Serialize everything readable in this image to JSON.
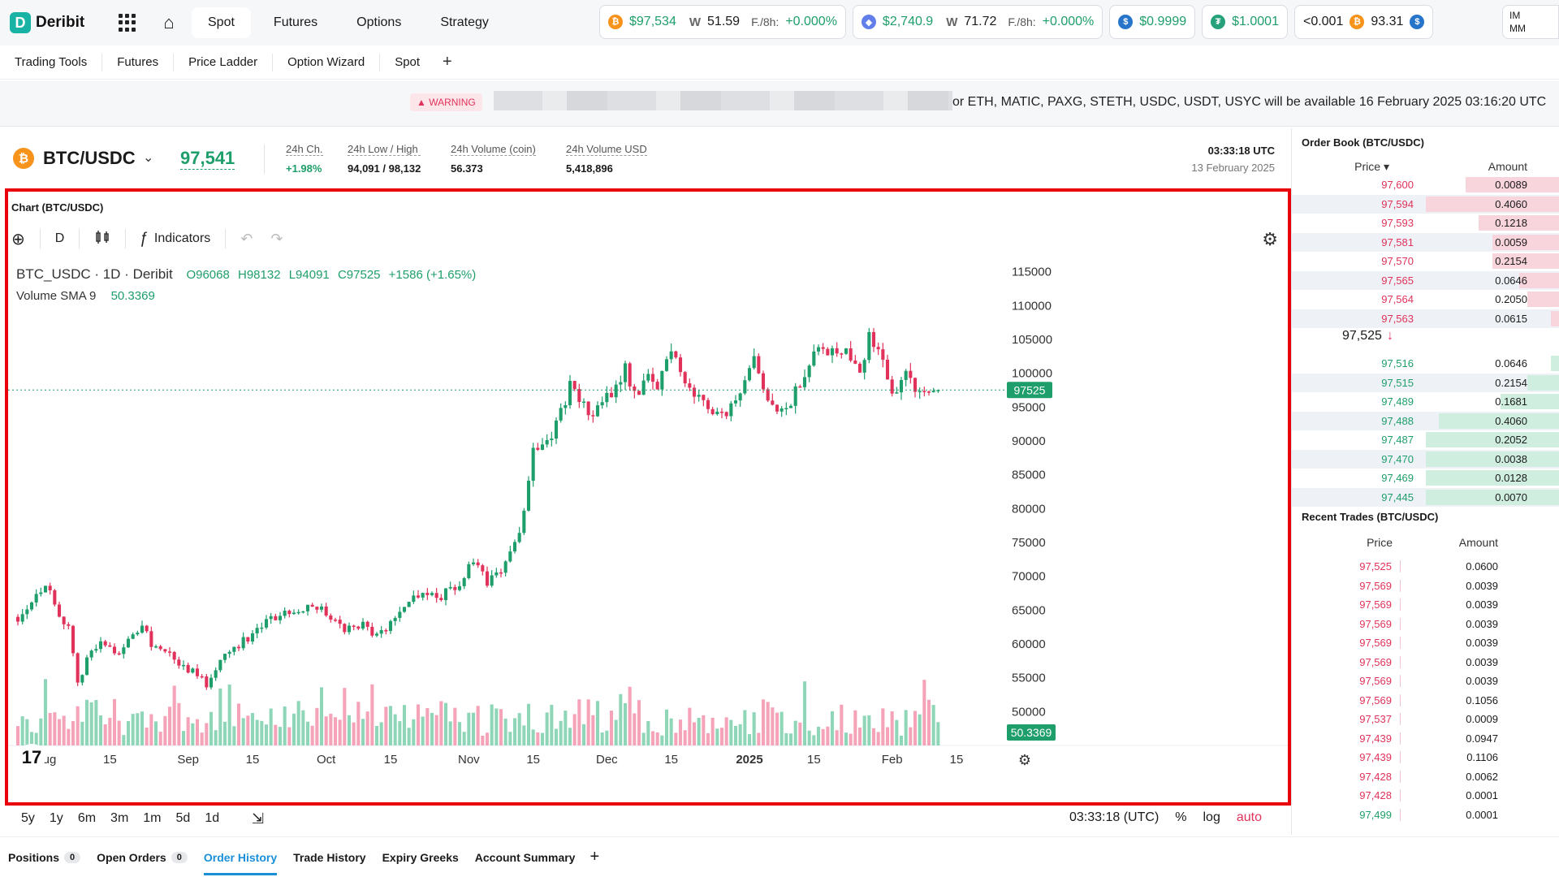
{
  "topnav": {
    "logo_text": "Deribit",
    "tabs": [
      {
        "label": "Spot",
        "active": true
      },
      {
        "label": "Futures",
        "active": false
      },
      {
        "label": "Options",
        "active": false
      },
      {
        "label": "Strategy",
        "active": false
      }
    ],
    "tickers": [
      {
        "coin": "btc",
        "price": "$97,534",
        "dvol": "51.59",
        "funding_label": "F./8h:",
        "funding": "+0.000%"
      },
      {
        "coin": "eth",
        "price": "$2,740.9",
        "dvol": "71.72",
        "funding_label": "F./8h:",
        "funding": "+0.000%"
      },
      {
        "coin": "usdc",
        "price": "$0.9999"
      },
      {
        "coin": "usdt",
        "price": "$1.0001"
      },
      {
        "coin": "ratio",
        "price": "<0.001",
        "value2": "93.31"
      }
    ],
    "im_label": "IM",
    "mm_label": "MM"
  },
  "subtabs": [
    "Trading Tools",
    "Futures",
    "Price Ladder",
    "Option Wizard",
    "Spot"
  ],
  "warning": {
    "badge": "WARNING",
    "text": "or ETH, MATIC, PAXG, STETH, USDC, USDT, USYC will be available 16 February 2025 03:16:20 UTC"
  },
  "instrument": {
    "name": "BTC/USDC",
    "last": "97,541",
    "stats": [
      {
        "key": "24h Ch.",
        "value": "+1.98%"
      },
      {
        "key": "24h Low / High",
        "value": "94,091 / 98,132"
      },
      {
        "key": "24h Volume (coin)",
        "value": "56.373"
      },
      {
        "key": "24h Volume USD",
        "value": "5,418,896"
      }
    ],
    "time": "03:33:18 UTC",
    "date": "13 February 2025"
  },
  "chart": {
    "panel_title": "Chart (BTC/USDC)",
    "interval": "D",
    "indicators_label": "Indicators",
    "legend_symbol": "BTC_USDC · 1D · Deribit",
    "legend_o": "O96068",
    "legend_h": "H98132",
    "legend_l": "L94091",
    "legend_c": "C97525",
    "legend_change": "+1586 (+1.65%)",
    "vol_label": "Volume SMA 9",
    "vol_value": "50.3369",
    "price_tag": "97525",
    "vol_tag": "50.3369"
  },
  "chart_data": {
    "type": "candlestick",
    "y_ticks": [
      115000,
      110000,
      105000,
      100000,
      95000,
      90000,
      85000,
      80000,
      75000,
      70000,
      65000,
      60000,
      55000,
      50000
    ],
    "ylim": [
      45000,
      117000
    ],
    "x_tick_labels": [
      {
        "label": "Aug",
        "day": 0
      },
      {
        "label": "15",
        "day": 14
      },
      {
        "label": "Sep",
        "day": 31
      },
      {
        "label": "15",
        "day": 45
      },
      {
        "label": "Oct",
        "day": 61
      },
      {
        "label": "15",
        "day": 75
      },
      {
        "label": "Nov",
        "day": 92
      },
      {
        "label": "15",
        "day": 106
      },
      {
        "label": "Dec",
        "day": 122
      },
      {
        "label": "15",
        "day": 136
      },
      {
        "label": "2025",
        "day": 153
      },
      {
        "label": "15",
        "day": 167
      },
      {
        "label": "Feb",
        "day": 184
      },
      {
        "label": "15",
        "day": 198
      }
    ],
    "first_day": -6,
    "last_day": 194,
    "last_close": 97525,
    "anchors": [
      [
        -6,
        64000
      ],
      [
        0,
        69000
      ],
      [
        2,
        66000
      ],
      [
        5,
        62000
      ],
      [
        7,
        54000
      ],
      [
        9,
        58000
      ],
      [
        12,
        60000
      ],
      [
        16,
        59000
      ],
      [
        19,
        61000
      ],
      [
        21,
        63000
      ],
      [
        23,
        60000
      ],
      [
        26,
        59000
      ],
      [
        29,
        57000
      ],
      [
        32,
        56000
      ],
      [
        35,
        54000
      ],
      [
        38,
        58000
      ],
      [
        42,
        60000
      ],
      [
        46,
        62000
      ],
      [
        50,
        64000
      ],
      [
        54,
        65000
      ],
      [
        58,
        66000
      ],
      [
        62,
        64000
      ],
      [
        65,
        62000
      ],
      [
        69,
        63000
      ],
      [
        72,
        61000
      ],
      [
        75,
        63000
      ],
      [
        78,
        66000
      ],
      [
        82,
        68000
      ],
      [
        86,
        67000
      ],
      [
        90,
        69000
      ],
      [
        93,
        72000
      ],
      [
        96,
        69000
      ],
      [
        100,
        72000
      ],
      [
        103,
        76000
      ],
      [
        106,
        89000
      ],
      [
        110,
        91000
      ],
      [
        114,
        98000
      ],
      [
        117,
        95000
      ],
      [
        119,
        94000
      ],
      [
        123,
        97000
      ],
      [
        126,
        101000
      ],
      [
        128,
        97000
      ],
      [
        131,
        99000
      ],
      [
        133,
        98000
      ],
      [
        136,
        104000
      ],
      [
        139,
        99000
      ],
      [
        142,
        96000
      ],
      [
        145,
        95000
      ],
      [
        148,
        94000
      ],
      [
        151,
        96000
      ],
      [
        154,
        102000
      ],
      [
        157,
        95000
      ],
      [
        160,
        94000
      ],
      [
        163,
        97000
      ],
      [
        166,
        102000
      ],
      [
        168,
        105000
      ],
      [
        171,
        103000
      ],
      [
        174,
        104000
      ],
      [
        177,
        101000
      ],
      [
        179,
        105000
      ],
      [
        182,
        102000
      ],
      [
        184,
        97000
      ],
      [
        187,
        100000
      ],
      [
        190,
        97000
      ],
      [
        194,
        97525
      ]
    ]
  },
  "range_bar": {
    "ranges": [
      "5y",
      "1y",
      "6m",
      "3m",
      "1m",
      "5d",
      "1d"
    ],
    "time": "03:33:18 (UTC)",
    "pct": "%",
    "log": "log",
    "auto": "auto"
  },
  "bottom_tabs": [
    {
      "label": "Positions",
      "count": "0"
    },
    {
      "label": "Open Orders",
      "count": "0"
    },
    {
      "label": "Order History",
      "active": true
    },
    {
      "label": "Trade History"
    },
    {
      "label": "Expiry Greeks"
    },
    {
      "label": "Account Summary"
    }
  ],
  "order_book": {
    "title": "Order Book (BTC/USDC)",
    "price_header": "Price",
    "amount_header": "Amount",
    "asks": [
      {
        "price": "97,600",
        "amount": "0.0089",
        "depth": 0.35
      },
      {
        "price": "97,594",
        "amount": "0.4060",
        "depth": 0.5
      },
      {
        "price": "97,593",
        "amount": "0.1218",
        "depth": 0.3
      },
      {
        "price": "97,581",
        "amount": "0.0059",
        "depth": 0.25
      },
      {
        "price": "97,570",
        "amount": "0.2154",
        "depth": 0.25
      },
      {
        "price": "97,565",
        "amount": "0.0646",
        "depth": 0.15
      },
      {
        "price": "97,564",
        "amount": "0.2050",
        "depth": 0.12
      },
      {
        "price": "97,563",
        "amount": "0.0615",
        "depth": 0.03
      }
    ],
    "mid_price": "97,525",
    "mid_arrow": "↓",
    "bids": [
      {
        "price": "97,516",
        "amount": "0.0646",
        "depth": 0.03
      },
      {
        "price": "97,515",
        "amount": "0.2154",
        "depth": 0.12
      },
      {
        "price": "97,489",
        "amount": "0.1681",
        "depth": 0.22
      },
      {
        "price": "97,488",
        "amount": "0.4060",
        "depth": 0.45
      },
      {
        "price": "97,487",
        "amount": "0.2052",
        "depth": 0.5
      },
      {
        "price": "97,470",
        "amount": "0.0038",
        "depth": 0.5
      },
      {
        "price": "97,469",
        "amount": "0.0128",
        "depth": 0.5
      },
      {
        "price": "97,445",
        "amount": "0.0070",
        "depth": 0.5
      }
    ]
  },
  "recent_trades": {
    "title": "Recent Trades (BTC/USDC)",
    "price_header": "Price",
    "amount_header": "Amount",
    "rows": [
      {
        "price": "97,525",
        "amount": "0.0600",
        "side": "sell"
      },
      {
        "price": "97,569",
        "amount": "0.0039",
        "side": "sell"
      },
      {
        "price": "97,569",
        "amount": "0.0039",
        "side": "sell"
      },
      {
        "price": "97,569",
        "amount": "0.0039",
        "side": "sell"
      },
      {
        "price": "97,569",
        "amount": "0.0039",
        "side": "sell"
      },
      {
        "price": "97,569",
        "amount": "0.0039",
        "side": "sell"
      },
      {
        "price": "97,569",
        "amount": "0.0039",
        "side": "sell"
      },
      {
        "price": "97,569",
        "amount": "0.1056",
        "side": "sell"
      },
      {
        "price": "97,537",
        "amount": "0.0009",
        "side": "sell"
      },
      {
        "price": "97,439",
        "amount": "0.0947",
        "side": "sell"
      },
      {
        "price": "97,439",
        "amount": "0.1106",
        "side": "sell"
      },
      {
        "price": "97,428",
        "amount": "0.0062",
        "side": "sell"
      },
      {
        "price": "97,428",
        "amount": "0.0001",
        "side": "sell"
      },
      {
        "price": "97,499",
        "amount": "0.0001",
        "side": "buy"
      }
    ]
  },
  "colors": {
    "up": "#1e9e6a",
    "down": "#e0325a",
    "alert": "#e8000b",
    "accent": "#1a8fd9"
  }
}
